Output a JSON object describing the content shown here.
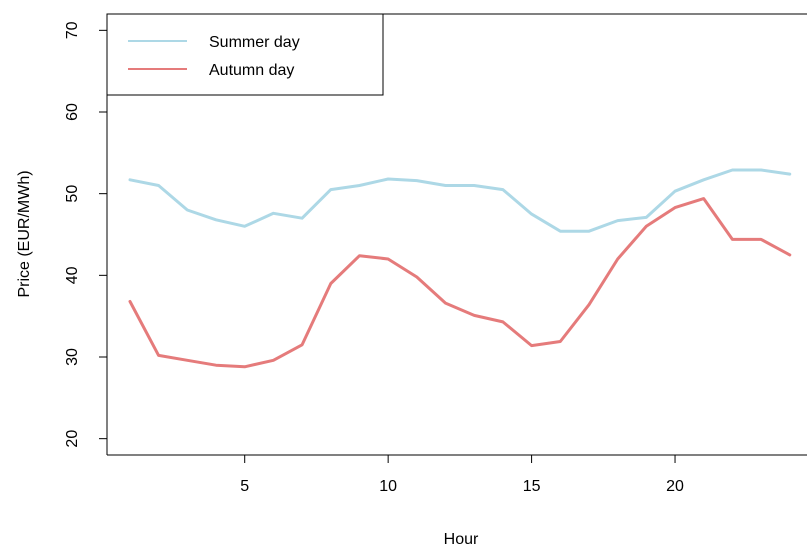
{
  "chart_data": {
    "type": "line",
    "title": "",
    "xlabel": "Hour",
    "ylabel": "Price (EUR/MWh)",
    "x": [
      1,
      2,
      3,
      4,
      5,
      6,
      7,
      8,
      9,
      10,
      11,
      12,
      13,
      14,
      15,
      16,
      17,
      18,
      19,
      20,
      21,
      22,
      23,
      24
    ],
    "xlim": [
      0.2,
      24.6
    ],
    "ylim": [
      18,
      72
    ],
    "xticks": [
      5,
      10,
      15,
      20
    ],
    "yticks": [
      20,
      30,
      40,
      50,
      60,
      70
    ],
    "grid": false,
    "legend": {
      "position": "top-left",
      "boxed": true
    },
    "series": [
      {
        "name": "Summer day",
        "color": "#ADD8E6",
        "values": [
          51.7,
          51.0,
          48.0,
          46.8,
          46.0,
          47.6,
          47.0,
          50.5,
          51.0,
          51.8,
          51.6,
          51.0,
          51.0,
          50.5,
          47.5,
          45.4,
          45.4,
          46.7,
          47.1,
          50.3,
          51.7,
          52.9,
          52.9,
          52.4
        ]
      },
      {
        "name": "Autumn day",
        "color": "#E57B7B",
        "values": [
          36.8,
          30.2,
          29.6,
          29.0,
          28.8,
          29.6,
          31.5,
          39.0,
          42.4,
          42.0,
          39.8,
          36.6,
          35.1,
          34.3,
          31.4,
          31.9,
          36.4,
          42.0,
          46.0,
          48.3,
          49.4,
          44.4,
          44.4,
          42.5
        ]
      }
    ]
  }
}
